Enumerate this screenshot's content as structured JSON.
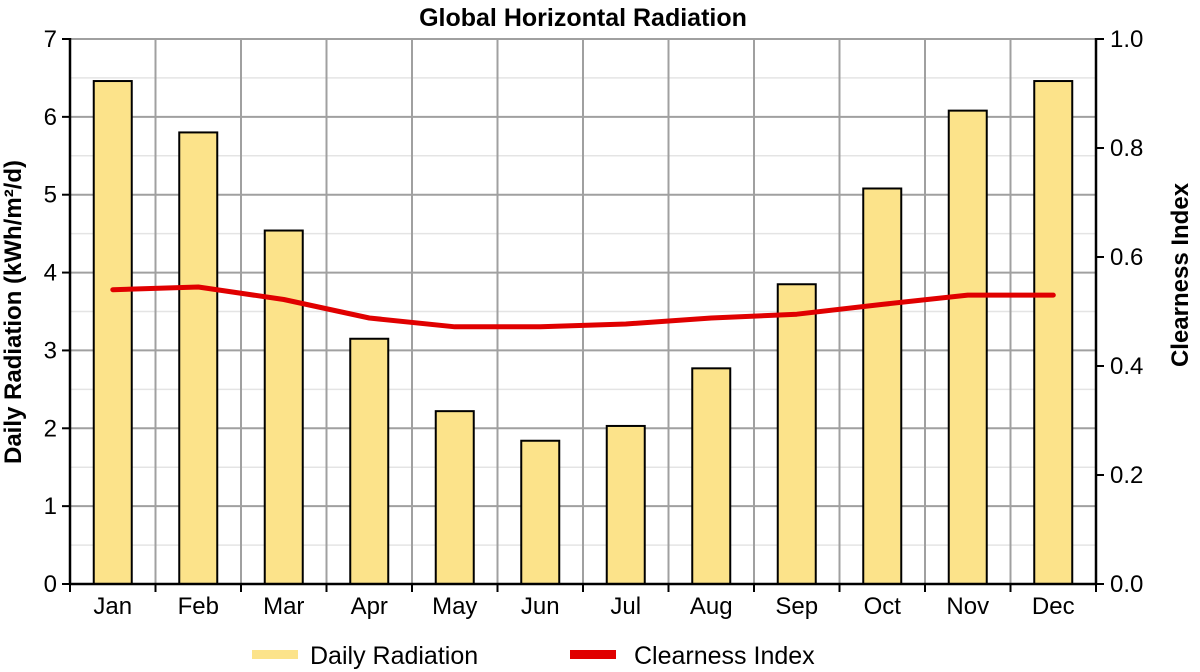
{
  "chart_data": {
    "type": "bar",
    "title": "Global Horizontal Radiation",
    "categories": [
      "Jan",
      "Feb",
      "Mar",
      "Apr",
      "May",
      "Jun",
      "Jul",
      "Aug",
      "Sep",
      "Oct",
      "Nov",
      "Dec"
    ],
    "series": [
      {
        "name": "Daily Radiation",
        "type": "bar",
        "axis": "left",
        "color": "#fce38a",
        "values": [
          6.46,
          5.8,
          4.54,
          3.15,
          2.22,
          1.84,
          2.03,
          2.77,
          3.85,
          5.08,
          6.08,
          6.46
        ]
      },
      {
        "name": "Clearness Index",
        "type": "line",
        "axis": "right",
        "color": "#e00000",
        "values": [
          0.54,
          0.545,
          0.522,
          0.488,
          0.472,
          0.472,
          0.477,
          0.488,
          0.495,
          0.513,
          0.53,
          0.53
        ]
      }
    ],
    "ylabel": "Daily Radiation (kWh/m²/d)",
    "ylim": [
      0,
      7
    ],
    "yticks": [
      "0",
      "1",
      "2",
      "3",
      "4",
      "5",
      "6",
      "7"
    ],
    "y2label": "Clearness Index",
    "y2lim": [
      0,
      1
    ],
    "y2ticks": [
      "0.0",
      "0.2",
      "0.4",
      "0.6",
      "0.8",
      "1.0"
    ],
    "grid": true,
    "legend_position": "bottom"
  }
}
